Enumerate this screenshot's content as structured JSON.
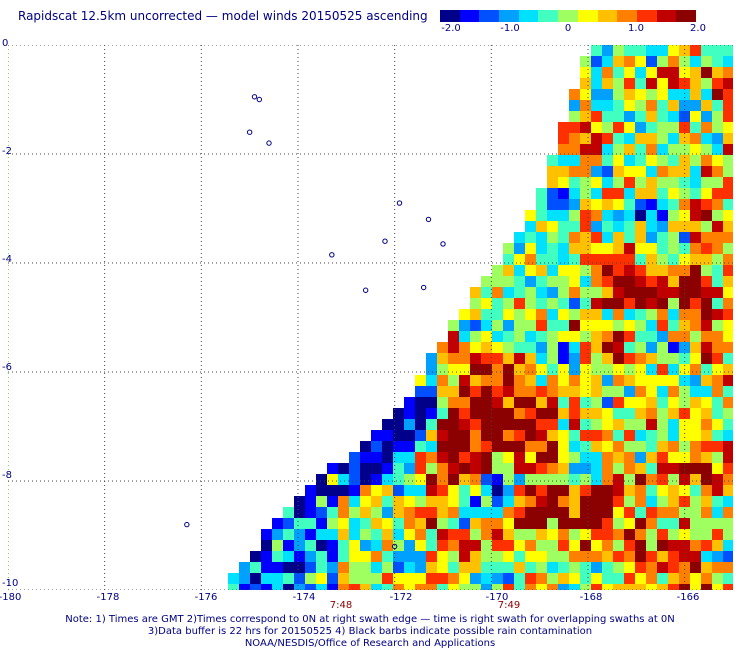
{
  "title": "Rapidscat 12.5km uncorrected — model winds 20150525 ascending",
  "colorbar": {
    "ticks": [
      "-2.0",
      "-1.0",
      "0",
      "1.0",
      "2.0"
    ],
    "range": [
      -2.0,
      2.0
    ],
    "colors": [
      "#00008b",
      "#0000ff",
      "#0050ff",
      "#00a0ff",
      "#00e0ff",
      "#40ffc0",
      "#a0ff60",
      "#ffff00",
      "#ffc000",
      "#ff8000",
      "#ff3000",
      "#c00000",
      "#8b0000"
    ]
  },
  "map": {
    "lon_range": [
      -180,
      -165
    ],
    "lat_range": [
      -10,
      0
    ],
    "x_ticks": [
      "-180",
      "-178",
      "-176",
      "-174",
      "-172",
      "-170",
      "-168",
      "-166"
    ],
    "y_ticks": [
      "0",
      "-2",
      "-4",
      "-6",
      "-8",
      "-10"
    ],
    "grid": true,
    "swath_times": [
      {
        "label": "7:48",
        "lon": -173.1
      },
      {
        "label": "7:49",
        "lon": -169.6
      }
    ]
  },
  "notes": [
    "Note: 1) Times are GMT 2)Times correspond to 0N at right swath edge — time is right swath for overlapping swaths at 0N",
    "3)Data buffer is 22 hrs for 20150525 4) Black barbs indicate possible rain contamination",
    "NOAA/NESDIS/Office of Research and Applications"
  ]
}
